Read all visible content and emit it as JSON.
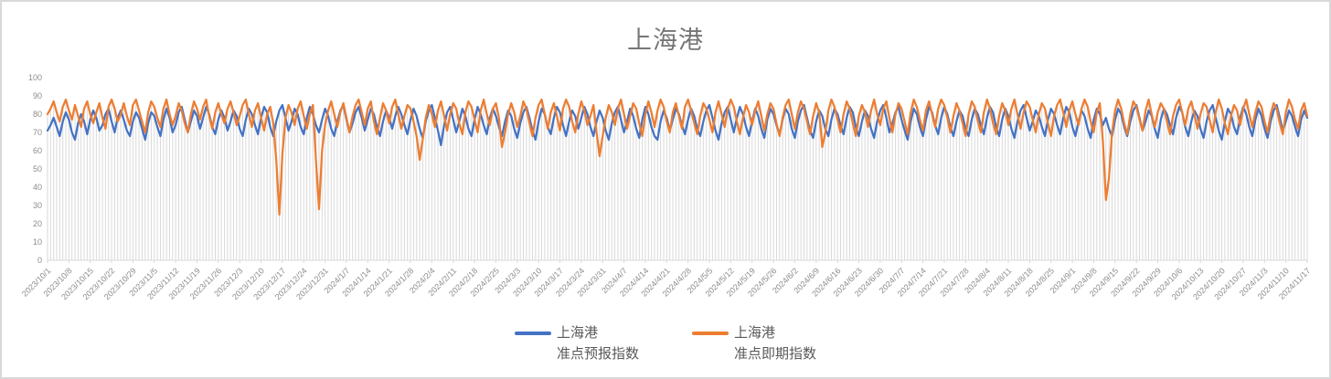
{
  "title": "上海港",
  "colors": {
    "series_forecast": "#4472C4",
    "series_spot": "#ED7D31",
    "gridline": "#D9D9D9",
    "axis_label": "#8C8C8C",
    "title_text": "#767676",
    "legend_text": "#595959",
    "frame_border": "#D9D9D9"
  },
  "legend": {
    "entries": [
      {
        "line1": "上海港",
        "line2": "准点预报指数",
        "color": "#4472C4"
      },
      {
        "line1": "上海港",
        "line2": "准点即期指数",
        "color": "#ED7D31"
      }
    ]
  },
  "chart_data": {
    "type": "line",
    "title": "上海港",
    "xlabel": "",
    "ylabel": "",
    "ylim": [
      0,
      100
    ],
    "y_ticks": [
      0,
      10,
      20,
      30,
      40,
      50,
      60,
      70,
      80,
      90,
      100
    ],
    "grid": "vertical drop lines, one per daily data point; no horizontal gridlines",
    "legend_position": "bottom",
    "x_unit": "day",
    "x_tick_interval_days": 7,
    "x_tick_labels": [
      "2023/10/1",
      "2023/10/8",
      "2023/10/15",
      "2023/10/22",
      "2023/10/29",
      "2023/11/5",
      "2023/11/12",
      "2023/11/19",
      "2023/11/26",
      "2023/12/3",
      "2023/12/10",
      "2023/12/17",
      "2023/12/24",
      "2023/12/31",
      "2024/1/7",
      "2024/1/14",
      "2024/1/21",
      "2024/1/28",
      "2024/2/4",
      "2024/2/11",
      "2024/2/18",
      "2024/2/25",
      "2024/3/3",
      "2024/3/10",
      "2024/3/17",
      "2024/3/24",
      "2024/3/31",
      "2024/4/7",
      "2024/4/14",
      "2024/4/21",
      "2024/4/28",
      "2024/5/5",
      "2024/5/12",
      "2024/5/19",
      "2024/5/26",
      "2024/6/2",
      "2024/6/9",
      "2024/6/16",
      "2024/6/23",
      "2024/6/30",
      "2024/7/7",
      "2024/7/14",
      "2024/7/21",
      "2024/7/28",
      "2024/8/4",
      "2024/8/11",
      "2024/8/18",
      "2024/8/25",
      "2024/9/1",
      "2024/9/8",
      "2024/9/15",
      "2024/9/22",
      "2024/9/29",
      "2024/10/6",
      "2024/10/13",
      "2024/10/20",
      "2024/10/27",
      "2024/11/3",
      "2024/11/10",
      "2024/11/17"
    ],
    "series": [
      {
        "name": "上海港 准点预报指数",
        "color": "#4472C4",
        "values": [
          71,
          74,
          78,
          73,
          68,
          76,
          81,
          77,
          70,
          66,
          75,
          80,
          76,
          69,
          77,
          82,
          78,
          71,
          74,
          80,
          83,
          76,
          70,
          78,
          82,
          77,
          71,
          68,
          76,
          81,
          78,
          72,
          66,
          75,
          81,
          79,
          73,
          68,
          77,
          83,
          78,
          70,
          74,
          81,
          84,
          77,
          70,
          76,
          82,
          79,
          72,
          78,
          84,
          80,
          73,
          69,
          77,
          82,
          78,
          71,
          76,
          82,
          79,
          72,
          68,
          77,
          83,
          80,
          74,
          69,
          78,
          84,
          81,
          73,
          68,
          76,
          82,
          85,
          78,
          71,
          76,
          83,
          80,
          73,
          69,
          78,
          84,
          80,
          74,
          70,
          77,
          83,
          79,
          72,
          68,
          76,
          82,
          85,
          77,
          70,
          75,
          81,
          84,
          78,
          71,
          77,
          83,
          80,
          73,
          68,
          76,
          82,
          78,
          72,
          79,
          84,
          80,
          74,
          69,
          77,
          83,
          79,
          72,
          67,
          76,
          82,
          85,
          78,
          71,
          63,
          74,
          81,
          84,
          77,
          70,
          76,
          83,
          79,
          72,
          68,
          77,
          84,
          80,
          74,
          69,
          78,
          83,
          79,
          73,
          68,
          76,
          82,
          79,
          72,
          67,
          75,
          81,
          84,
          78,
          71,
          66,
          76,
          83,
          80,
          73,
          69,
          78,
          84,
          81,
          74,
          68,
          76,
          82,
          79,
          72,
          78,
          84,
          80,
          73,
          68,
          76,
          82,
          78,
          71,
          66,
          75,
          81,
          84,
          77,
          70,
          76,
          83,
          79,
          72,
          67,
          77,
          84,
          80,
          73,
          68,
          66,
          76,
          82,
          78,
          71,
          77,
          83,
          80,
          74,
          69,
          77,
          83,
          79,
          72,
          68,
          76,
          82,
          85,
          78,
          71,
          66,
          75,
          81,
          84,
          77,
          70,
          78,
          84,
          80,
          73,
          68,
          76,
          83,
          79,
          72,
          67,
          77,
          83,
          80,
          74,
          69,
          77,
          83,
          80,
          72,
          67,
          76,
          82,
          85,
          78,
          71,
          67,
          76,
          82,
          79,
          72,
          68,
          77,
          83,
          80,
          74,
          69,
          78,
          84,
          81,
          73,
          68,
          76,
          82,
          79,
          72,
          67,
          76,
          82,
          85,
          78,
          70,
          75,
          81,
          84,
          77,
          71,
          66,
          76,
          83,
          80,
          73,
          68,
          77,
          84,
          81,
          74,
          69,
          78,
          84,
          80,
          73,
          68,
          76,
          82,
          79,
          72,
          68,
          77,
          83,
          80,
          74,
          69,
          78,
          84,
          81,
          73,
          68,
          77,
          83,
          79,
          72,
          67,
          76,
          82,
          85,
          78,
          71,
          76,
          82,
          79,
          73,
          68,
          77,
          83,
          80,
          74,
          69,
          78,
          84,
          81,
          73,
          68,
          76,
          82,
          79,
          72,
          67,
          77,
          83,
          80,
          74,
          78,
          72,
          68,
          77,
          83,
          80,
          73,
          68,
          76,
          82,
          85,
          78,
          71,
          76,
          82,
          79,
          72,
          67,
          77,
          83,
          80,
          74,
          69,
          78,
          84,
          81,
          73,
          68,
          76,
          82,
          79,
          72,
          67,
          76,
          82,
          85,
          78,
          71,
          66,
          76,
          83,
          80,
          73,
          69,
          78,
          84,
          80,
          73,
          68,
          77,
          83,
          79,
          72,
          67,
          76,
          82,
          85,
          78,
          71,
          76,
          82,
          79,
          73,
          68,
          77,
          82,
          78
        ]
      },
      {
        "name": "上海港 准点即期指数",
        "color": "#ED7D31",
        "values": [
          80,
          83,
          87,
          81,
          76,
          84,
          88,
          82,
          77,
          85,
          79,
          73,
          83,
          87,
          80,
          75,
          81,
          86,
          78,
          72,
          84,
          88,
          83,
          76,
          80,
          86,
          79,
          74,
          85,
          88,
          82,
          76,
          70,
          81,
          87,
          84,
          78,
          73,
          83,
          88,
          80,
          74,
          79,
          86,
          82,
          75,
          70,
          80,
          87,
          83,
          77,
          84,
          88,
          79,
          72,
          81,
          86,
          80,
          75,
          83,
          87,
          81,
          74,
          79,
          85,
          88,
          80,
          73,
          82,
          86,
          78,
          71,
          80,
          84,
          75,
          55,
          25,
          58,
          78,
          85,
          81,
          74,
          83,
          87,
          79,
          72,
          80,
          85,
          55,
          28,
          60,
          74,
          82,
          87,
          80,
          73,
          81,
          86,
          78,
          70,
          79,
          85,
          88,
          81,
          74,
          83,
          87,
          76,
          69,
          78,
          86,
          82,
          75,
          84,
          88,
          80,
          72,
          79,
          85,
          83,
          76,
          68,
          55,
          66,
          78,
          85,
          80,
          73,
          82,
          87,
          79,
          71,
          80,
          86,
          83,
          75,
          69,
          81,
          87,
          84,
          77,
          70,
          82,
          88,
          80,
          74,
          83,
          86,
          78,
          62,
          70,
          80,
          86,
          81,
          73,
          79,
          87,
          83,
          75,
          68,
          78,
          85,
          88,
          80,
          72,
          81,
          86,
          79,
          71,
          83,
          88,
          84,
          76,
          70,
          80,
          87,
          82,
          74,
          79,
          85,
          70,
          57,
          68,
          78,
          85,
          81,
          74,
          83,
          88,
          80,
          72,
          79,
          86,
          83,
          75,
          68,
          80,
          87,
          81,
          73,
          82,
          88,
          84,
          76,
          70,
          81,
          86,
          79,
          72,
          84,
          88,
          82,
          75,
          69,
          79,
          86,
          83,
          77,
          70,
          81,
          87,
          80,
          73,
          83,
          88,
          84,
          76,
          69,
          78,
          85,
          81,
          74,
          82,
          87,
          79,
          71,
          80,
          86,
          83,
          75,
          68,
          78,
          85,
          88,
          80,
          72,
          81,
          87,
          83,
          76,
          69,
          79,
          86,
          81,
          62,
          70,
          82,
          88,
          84,
          77,
          70,
          80,
          87,
          83,
          75,
          68,
          79,
          85,
          81,
          73,
          82,
          88,
          80,
          74,
          83,
          87,
          78,
          70,
          80,
          86,
          83,
          76,
          69,
          81,
          88,
          84,
          77,
          71,
          82,
          87,
          80,
          73,
          83,
          88,
          85,
          78,
          70,
          79,
          86,
          82,
          75,
          68,
          80,
          87,
          84,
          76,
          70,
          81,
          88,
          83,
          75,
          69,
          79,
          86,
          82,
          74,
          83,
          88,
          80,
          72,
          81,
          87,
          84,
          77,
          70,
          80,
          86,
          83,
          75,
          68,
          79,
          85,
          88,
          81,
          73,
          82,
          87,
          80,
          74,
          83,
          88,
          84,
          76,
          70,
          81,
          86,
          65,
          33,
          45,
          70,
          82,
          88,
          83,
          75,
          69,
          80,
          87,
          84,
          77,
          71,
          82,
          88,
          80,
          73,
          81,
          86,
          83,
          76,
          69,
          79,
          85,
          88,
          81,
          74,
          83,
          87,
          80,
          72,
          80,
          86,
          84,
          77,
          70,
          81,
          88,
          83,
          75,
          69,
          79,
          85,
          82,
          74,
          83,
          88,
          80,
          73,
          81,
          87,
          84,
          76,
          70,
          80,
          86,
          83,
          75,
          69,
          81,
          88,
          84,
          77,
          72,
          82,
          86,
          79
        ]
      }
    ]
  }
}
